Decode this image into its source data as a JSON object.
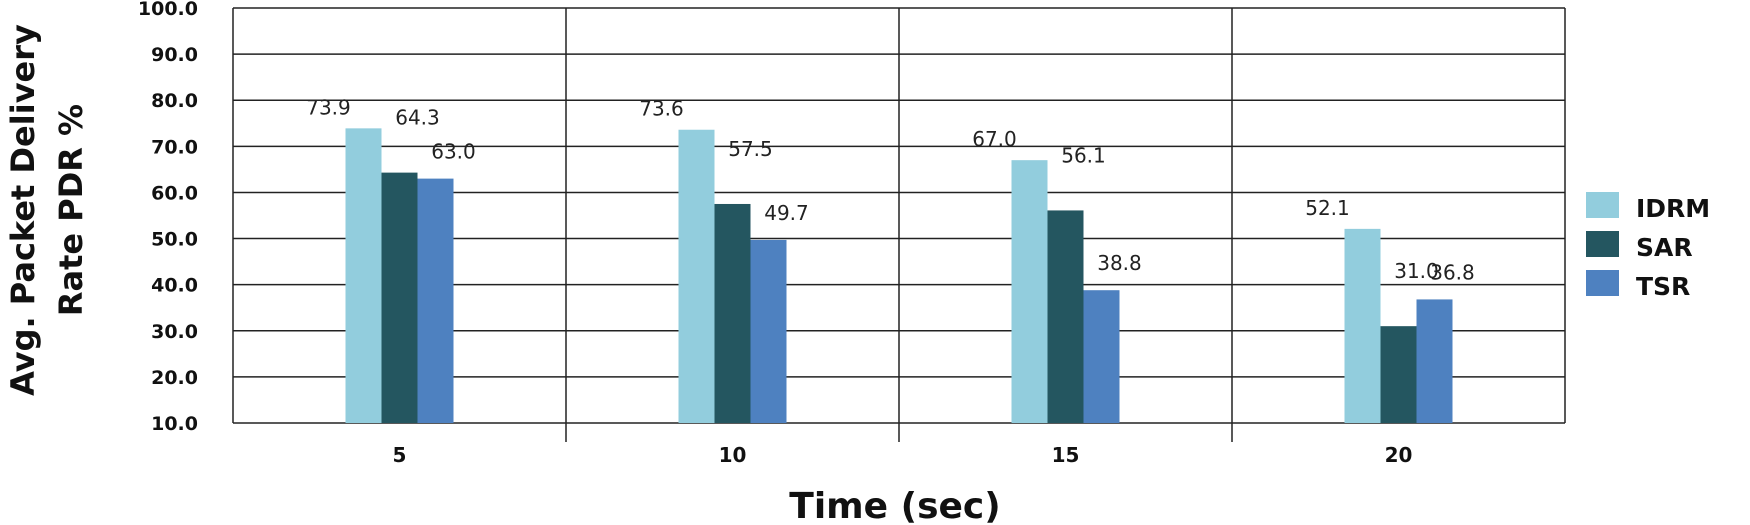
{
  "chart_data": {
    "type": "bar",
    "categories": [
      "5",
      "10",
      "15",
      "20"
    ],
    "series": [
      {
        "name": "IDRM",
        "values": [
          73.9,
          73.6,
          67.0,
          52.1
        ],
        "color": "#92cddd"
      },
      {
        "name": "SAR",
        "values": [
          64.3,
          57.5,
          56.1,
          31.0
        ],
        "color": "#245660"
      },
      {
        "name": "TSR",
        "values": [
          63.0,
          49.7,
          38.8,
          36.8
        ],
        "color": "#4e81c0"
      }
    ],
    "data_labels": [
      [
        "73.9",
        "73.6",
        "67.0",
        "52.1"
      ],
      [
        "64.3",
        "57.5",
        "56.1",
        "31.0"
      ],
      [
        "63.0",
        "49.7",
        "38.8",
        "36.8"
      ]
    ],
    "xlabel": "Time (sec)",
    "ylabel_lines": [
      "Avg. Packet Delivery",
      "Rate PDR %"
    ],
    "ylim": [
      10,
      100
    ],
    "yticks": [
      "10.0",
      "20.0",
      "30.0",
      "40.0",
      "50.0",
      "60.0",
      "70.0",
      "80.0",
      "90.0",
      "100.0"
    ],
    "grid": true,
    "legend_position": "right"
  }
}
